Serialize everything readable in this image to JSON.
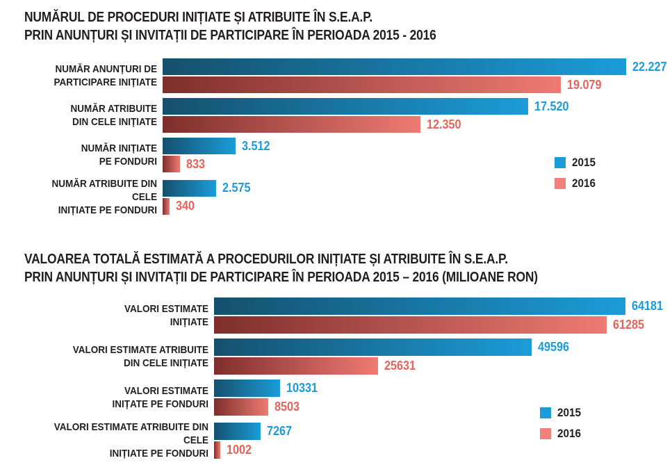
{
  "chart_data": [
    {
      "type": "bar",
      "orientation": "horizontal",
      "title": "NUMĂRUL DE PROCEDURI INIȚIATE ȘI ATRIBUITE ÎN S.E.A.P. PRIN ANUNȚURI ȘI INVITAȚII DE PARTICIPARE ÎN PERIOADA 2015 - 2016",
      "categories": [
        "NUMĂR ANUNȚURI DE PARTICIPARE INIȚIATE",
        "NUMĂR ATRIBUITE DIN CELE INIȚIATE",
        "NUMĂR INIȚIATE PE FONDURI",
        "NUMĂR ATRIBUITE DIN CELE INIȚIATE PE FONDURI"
      ],
      "series": [
        {
          "name": "2015",
          "values": [
            22227,
            17520,
            3512,
            2575
          ],
          "color": "#1b9cd8"
        },
        {
          "name": "2016",
          "values": [
            19079,
            12350,
            833,
            340
          ],
          "color": "#ee7b73"
        }
      ],
      "legend_position": "right",
      "grid": false,
      "data_labels": true
    },
    {
      "type": "bar",
      "orientation": "horizontal",
      "title": "VALOAREA TOTALĂ ESTIMATĂ A PROCEDURILOR INIȚIATE ȘI ATRIBUITE ÎN S.E.A.P. PRIN ANUNȚURI ȘI INVITAȚII DE PARTICIPARE ÎN PERIOADA 2015 – 2016 (MILIOANE RON)",
      "categories": [
        "VALORI ESTIMATE INIȚIATE",
        "VALORI ESTIMATE ATRIBUITE DIN CELE INIȚIATE",
        "VALORI ESTIMATE INIȚATE PE FONDURI",
        "VALORI ESTIMATE ATRIBUITE DIN CELE INIȚIATE PE FONDURI"
      ],
      "series": [
        {
          "name": "2015",
          "values": [
            64181,
            49596,
            10331,
            7267
          ],
          "color": "#1b9cd8"
        },
        {
          "name": "2016",
          "values": [
            61285,
            25631,
            8503,
            1002
          ],
          "color": "#ee7b73"
        }
      ],
      "legend_position": "right",
      "grid": false,
      "data_labels": true
    }
  ],
  "colors": {
    "blue": "#1b9cd8",
    "blue_dark": "#15506d",
    "salmon": "#ee7b73",
    "red_dark": "#7e2e2c",
    "text": "#221e1f"
  },
  "chart1": {
    "title_line1": "NUMĂRUL DE PROCEDURI INIȚIATE ȘI ATRIBUITE ÎN S.E.A.P.",
    "title_line2": "PRIN ANUNȚURI ȘI INVITAȚII DE PARTICIPARE ÎN PERIOADA 2015 - 2016",
    "legend": {
      "label_2015": "2015",
      "label_2016": "2016"
    },
    "groups": [
      {
        "label_line1": "NUMĂR ANUNȚURI DE",
        "label_line2": "PARTICIPARE INIȚIATE",
        "value_2015": 22227,
        "value_2016": 19079,
        "display_2015": "22.227",
        "display_2016": "19.079"
      },
      {
        "label_line1": "NUMĂR ATRIBUITE",
        "label_line2": "DIN CELE INIȚIATE",
        "value_2015": 17520,
        "value_2016": 12350,
        "display_2015": "17.520",
        "display_2016": "12.350"
      },
      {
        "label_line1": "NUMĂR INIȚIATE",
        "label_line2": "PE FONDURI",
        "value_2015": 3512,
        "value_2016": 833,
        "display_2015": "3.512",
        "display_2016": "833"
      },
      {
        "label_line1": "NUMĂR ATRIBUITE DIN CELE",
        "label_line2": "INIȚIATE PE FONDURI",
        "value_2015": 2575,
        "value_2016": 340,
        "display_2015": "2.575",
        "display_2016": "340"
      }
    ]
  },
  "chart2": {
    "title_line1": "VALOAREA TOTALĂ ESTIMATĂ A PROCEDURILOR INIȚIATE ȘI ATRIBUITE ÎN S.E.A.P.",
    "title_line2": "PRIN ANUNȚURI ȘI INVITAȚII DE PARTICIPARE ÎN PERIOADA 2015 – 2016 (MILIOANE RON)",
    "legend": {
      "label_2015": "2015",
      "label_2016": "2016"
    },
    "groups": [
      {
        "label_line1": "VALORI ESTIMATE",
        "label_line2": "INIȚIATE",
        "value_2015": 64181,
        "value_2016": 61285,
        "display_2015": "64181",
        "display_2016": "61285"
      },
      {
        "label_line1": "VALORI ESTIMATE ATRIBUITE",
        "label_line2": "DIN CELE INIȚIATE",
        "value_2015": 49596,
        "value_2016": 25631,
        "display_2015": "49596",
        "display_2016": "25631"
      },
      {
        "label_line1": "VALORI ESTIMATE",
        "label_line2": "INIȚATE PE FONDURI",
        "value_2015": 10331,
        "value_2016": 8503,
        "display_2015": "10331",
        "display_2016": "8503"
      },
      {
        "label_line1": "VALORI ESTIMATE ATRIBUITE DIN CELE",
        "label_line2": "INIȚIATE PE FONDURI",
        "value_2015": 7267,
        "value_2016": 1002,
        "display_2015": "7267",
        "display_2016": "1002"
      }
    ]
  }
}
